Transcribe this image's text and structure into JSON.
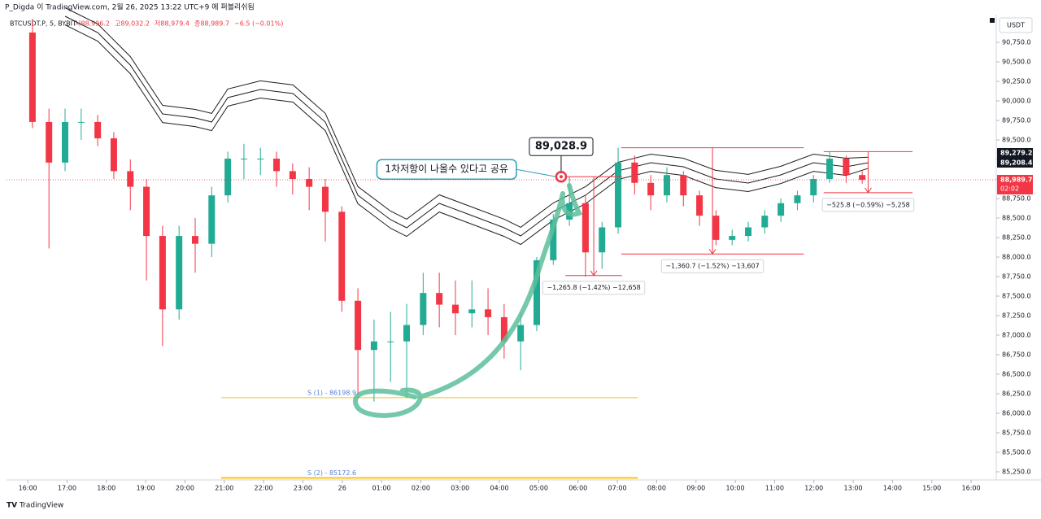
{
  "header": {
    "author_line": "P_Digda 이 TradingView.com, 2월 26, 2025 13:22 UTC+9 에 퍼블리쉬됨",
    "symbol": "BTCUSDT.P, 5, BYBIT",
    "ohlc": [
      "시88,996.2",
      "고89,032.2",
      "저88,979.4",
      "종88,989.7",
      "−6.5 (−0.01%)"
    ],
    "currency": "USDT",
    "countdown": "02:02",
    "brand": "TradingView"
  },
  "chart_data": {
    "type": "candlestick",
    "up_color": "#22ab94",
    "down_color": "#f23645",
    "xlim": [
      -0.54,
      24.64
    ],
    "ylim": [
      85146,
      91104
    ],
    "xticks": [
      {
        "value": 0,
        "label": "16:00"
      },
      {
        "value": 1,
        "label": "17:00"
      },
      {
        "value": 2,
        "label": "18:00"
      },
      {
        "value": 3,
        "label": "19:00"
      },
      {
        "value": 4,
        "label": "20:00"
      },
      {
        "value": 5,
        "label": "21:00"
      },
      {
        "value": 6,
        "label": "22:00"
      },
      {
        "value": 7,
        "label": "23:00"
      },
      {
        "value": 8,
        "label": "26"
      },
      {
        "value": 9,
        "label": "01:00"
      },
      {
        "value": 10,
        "label": "02:00"
      },
      {
        "value": 11,
        "label": "03:00"
      },
      {
        "value": 12,
        "label": "04:00"
      },
      {
        "value": 13,
        "label": "05:00"
      },
      {
        "value": 14,
        "label": "06:00"
      },
      {
        "value": 15,
        "label": "07:00"
      },
      {
        "value": 16,
        "label": "08:00"
      },
      {
        "value": 17,
        "label": "09:00"
      },
      {
        "value": 18,
        "label": "10:00"
      },
      {
        "value": 19,
        "label": "11:00"
      },
      {
        "value": 20,
        "label": "12:00"
      },
      {
        "value": 21,
        "label": "13:00"
      },
      {
        "value": 22,
        "label": "14:00"
      },
      {
        "value": 23,
        "label": "15:00"
      },
      {
        "value": 24,
        "label": "16:00"
      }
    ],
    "yticks": [
      {
        "value": 85250,
        "label": "85,250.0"
      },
      {
        "value": 85500,
        "label": "85,500.0"
      },
      {
        "value": 85750,
        "label": "85,750.0"
      },
      {
        "value": 86000,
        "label": "86,000.0"
      },
      {
        "value": 86250,
        "label": "86,250.0"
      },
      {
        "value": 86500,
        "label": "86,500.0"
      },
      {
        "value": 86750,
        "label": "86,750.0"
      },
      {
        "value": 87000,
        "label": "87,000.0"
      },
      {
        "value": 87250,
        "label": "87,250.0"
      },
      {
        "value": 87500,
        "label": "87,500.0"
      },
      {
        "value": 87750,
        "label": "87,750.0"
      },
      {
        "value": 88000,
        "label": "88,000.0"
      },
      {
        "value": 88250,
        "label": "88,250.0"
      },
      {
        "value": 88500,
        "label": "88,500.0"
      },
      {
        "value": 88750,
        "label": "88,750.0"
      },
      {
        "value": 89000,
        "label": "89,000.0"
      },
      {
        "value": 89250,
        "label": "89,250.0"
      },
      {
        "value": 89500,
        "label": "89,500.0"
      },
      {
        "value": 89750,
        "label": "89,750.0"
      },
      {
        "value": 90000,
        "label": "90,000.0"
      },
      {
        "value": 90250,
        "label": "90,250.0"
      },
      {
        "value": 90500,
        "label": "90,500.0"
      },
      {
        "value": 90750,
        "label": "90,750.0"
      }
    ],
    "grid": false,
    "x": [
      0.12,
      0.54,
      0.95,
      1.36,
      1.78,
      2.19,
      2.61,
      3.02,
      3.43,
      3.85,
      4.26,
      4.68,
      5.09,
      5.5,
      5.92,
      6.33,
      6.74,
      7.16,
      7.57,
      7.99,
      8.4,
      8.81,
      9.23,
      9.64,
      10.06,
      10.47,
      10.88,
      11.3,
      11.71,
      12.12,
      12.54,
      12.95,
      13.37,
      13.78,
      14.19,
      14.61,
      15.02,
      15.44,
      15.85,
      16.26,
      16.68,
      17.09,
      17.51,
      17.92,
      18.33,
      18.75,
      19.16,
      19.58,
      19.99,
      20.4,
      20.82,
      21.23
    ],
    "open": [
      90875,
      89730,
      89210,
      89730,
      89730,
      89520,
      89100,
      88900,
      88270,
      87330,
      88270,
      88170,
      88790,
      89260,
      89260,
      89260,
      89100,
      89000,
      88900,
      88580,
      87440,
      86810,
      86920,
      86920,
      87130,
      87540,
      87390,
      87280,
      87330,
      87230,
      86920,
      87130,
      87960,
      88480,
      88690,
      88060,
      88380,
      89210,
      88950,
      88790,
      89050,
      88790,
      88530,
      88220,
      88270,
      88380,
      88530,
      88690,
      88790,
      89000,
      89260,
      89050
    ],
    "high": [
      91050,
      89900,
      89900,
      89900,
      89820,
      89600,
      89250,
      89000,
      88400,
      88400,
      88500,
      88900,
      89350,
      89450,
      89400,
      89350,
      89200,
      89150,
      89000,
      88650,
      87600,
      87200,
      87300,
      87400,
      87800,
      87800,
      87700,
      87700,
      87600,
      87400,
      87300,
      88000,
      88550,
      89029,
      88800,
      88450,
      89400,
      89300,
      89050,
      89150,
      89100,
      88850,
      88600,
      88350,
      88450,
      88600,
      88750,
      88850,
      89050,
      89350,
      89300,
      89100
    ],
    "low": [
      89650,
      88110,
      89100,
      89500,
      89420,
      89000,
      88600,
      87700,
      86860,
      87200,
      87800,
      88000,
      88700,
      89000,
      89050,
      88900,
      88800,
      88600,
      88200,
      87300,
      86200,
      86150,
      86400,
      86200,
      87000,
      87100,
      87000,
      87100,
      87000,
      86700,
      86550,
      87050,
      87900,
      88400,
      87750,
      87850,
      88300,
      88800,
      88600,
      88700,
      88650,
      88400,
      88150,
      88150,
      88200,
      88300,
      88450,
      88600,
      88700,
      88950,
      88950,
      88940
    ],
    "close": [
      89730,
      89210,
      89730,
      89730,
      89520,
      89100,
      88900,
      88270,
      87330,
      88270,
      88170,
      88790,
      89260,
      89260,
      89260,
      89100,
      89000,
      88900,
      88580,
      87440,
      86810,
      86920,
      86920,
      87130,
      87540,
      87390,
      87280,
      87330,
      87230,
      86920,
      87130,
      87960,
      88480,
      88690,
      88060,
      88380,
      89210,
      88950,
      88790,
      89050,
      88790,
      88530,
      88220,
      88270,
      88380,
      88530,
      88690,
      88790,
      89000,
      89260,
      89050,
      88989.7
    ],
    "overlays": {
      "x": [
        0.95,
        1.78,
        2.61,
        3.43,
        4.26,
        4.68,
        5.09,
        5.92,
        6.75,
        7.57,
        8.4,
        9.23,
        9.64,
        10.47,
        11.3,
        12.12,
        12.54,
        13.37,
        14.19,
        15.02,
        15.85,
        16.68,
        17.5,
        18.33,
        19.16,
        19.99,
        20.82,
        21.39
      ],
      "color": "#1e1e1e",
      "series": [
        {
          "values": [
            91193,
            90985,
            90568,
            89943,
            89891,
            89839,
            90152,
            90256,
            90204,
            89839,
            88902,
            88589,
            88485,
            88797,
            88641,
            88485,
            88381,
            88693,
            88902,
            89214,
            89318,
            89266,
            89110,
            89058,
            89162,
            89318,
            89266,
            89279.2
          ]
        },
        {
          "values": [
            91083,
            90875,
            90458,
            89833,
            89781,
            89729,
            90042,
            90146,
            90094,
            89729,
            88792,
            88479,
            88375,
            88687,
            88531,
            88375,
            88271,
            88583,
            88792,
            89104,
            89208,
            89156,
            89000,
            88948,
            89052,
            89208,
            89156,
            89208.4
          ]
        },
        {
          "values": [
            90973,
            90765,
            90348,
            89723,
            89671,
            89619,
            89932,
            90036,
            89984,
            89619,
            88682,
            88369,
            88265,
            88577,
            88421,
            88265,
            88161,
            88473,
            88682,
            88994,
            89098,
            89046,
            88890,
            88838,
            88942,
            89098,
            89046,
            89137.6
          ]
        }
      ]
    },
    "price_labels": [
      {
        "value": 89279.2,
        "label": "89,279.2",
        "color": "#131722"
      },
      {
        "value": 89208.4,
        "label": "89,208.4",
        "color": "#131722"
      },
      {
        "value": 88989.7,
        "label": "88,989.7",
        "color": "#f23645"
      }
    ],
    "supports": [
      {
        "value": 86198.9,
        "label": "S (1) - 86198.9",
        "start": 4.92,
        "end": 15.52
      },
      {
        "value": 85172.6,
        "label": "S (2) - 85172.6",
        "start": 4.92,
        "end": 15.52
      }
    ],
    "measures": [
      {
        "start": 13.68,
        "end": 15.12,
        "from": 89028.9,
        "to": 87763.1,
        "label": "−1,265.8 (−1.42%) −12,658"
      },
      {
        "start": 15.1,
        "end": 19.74,
        "from": 89400,
        "to": 88039.3,
        "label": "−1,360.7 (−1.52%) −13,607"
      },
      {
        "start": 20.25,
        "end": 22.51,
        "from": 89350,
        "to": 88824.2,
        "label": "−525.8 (−0.59%) −5,258"
      }
    ],
    "callout": {
      "text": "1차저항이 나올수 있다고 공유",
      "x": 13.57,
      "price": {
        "value": 89028.9,
        "label": "89,028.9"
      }
    }
  }
}
